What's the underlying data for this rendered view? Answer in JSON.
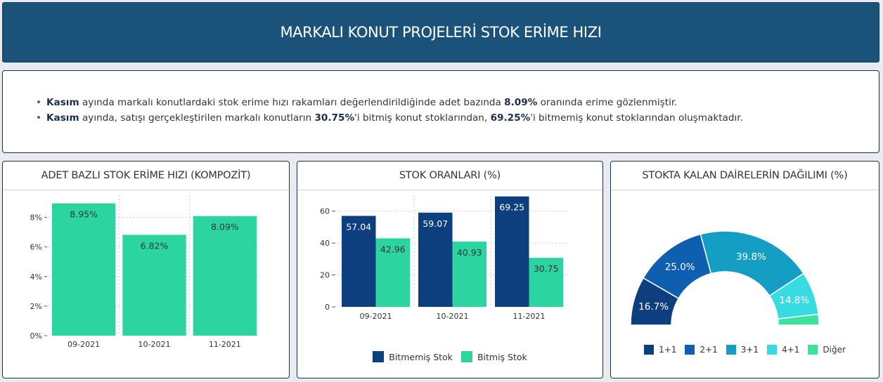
{
  "header": {
    "title": "MARKALI KONUT PROJELERİ STOK ERİME HIZI"
  },
  "summary": {
    "line1": {
      "month": "Kasım",
      "text_a": " ayında markalı konutlardaki stok erime hızı rakamları değerlendirildiğinde adet bazında ",
      "value": "8.09%",
      "text_b": " oranında erime gözlenmiştir."
    },
    "line2": {
      "month": "Kasım",
      "text_a": " ayında, satışı gerçekleştirilen markalı konutların ",
      "value1": "30.75%",
      "text_b": "'i bitmiş konut stoklarından, ",
      "value2": "69.25%",
      "text_c": "'i bitmemiş konut stoklarından oluşmaktadır."
    }
  },
  "panels": {
    "p1_title": "ADET BAZLI STOK ERİME HIZI (KOMPOZİT)",
    "p2_title": "STOK ORANLARI (%)",
    "p3_title": "STOKTA KALAN DAİRELERİN DAĞILIMI (%)"
  },
  "colors": {
    "green": "#2cd59f",
    "navy": "#0d3f7e",
    "pie": [
      "#0d3f7e",
      "#0f5fb0",
      "#149ec4",
      "#39dbe3",
      "#3de39d"
    ]
  },
  "chart_data": [
    {
      "type": "bar",
      "title": "ADET BAZLI STOK ERİME HIZI (KOMPOZİT)",
      "categories": [
        "09-2021",
        "10-2021",
        "11-2021"
      ],
      "values": [
        8.95,
        6.82,
        8.09
      ],
      "labels": [
        "8.95%",
        "6.82%",
        "8.09%"
      ],
      "ylim": [
        0,
        9.5
      ],
      "yticks": [
        0,
        2,
        4,
        6,
        8
      ],
      "ytick_labels": [
        "0%",
        "2%",
        "4%",
        "6%",
        "8%"
      ],
      "grid": true
    },
    {
      "type": "bar",
      "title": "STOK ORANLARI (%)",
      "categories": [
        "09-2021",
        "10-2021",
        "11-2021"
      ],
      "series": [
        {
          "name": "Bitmemiş Stok",
          "values": [
            57.04,
            59.07,
            69.25
          ]
        },
        {
          "name": "Bitmiş Stok",
          "values": [
            42.96,
            40.93,
            30.75
          ]
        }
      ],
      "ylim": [
        0,
        70
      ],
      "yticks": [
        0,
        20,
        40,
        60
      ],
      "legend": "bottom",
      "grid": true
    },
    {
      "type": "pie",
      "title": "STOKTA KALAN DAİRELERİN DAĞILIMI (%)",
      "slices": [
        {
          "name": "1+1",
          "value": 16.7,
          "label": "16.7%"
        },
        {
          "name": "2+1",
          "value": 25.0,
          "label": "25.0%"
        },
        {
          "name": "3+1",
          "value": 39.8,
          "label": "39.8%"
        },
        {
          "name": "4+1",
          "value": 14.8,
          "label": "14.8%"
        },
        {
          "name": "Diğer",
          "value": 3.7,
          "label": ""
        }
      ],
      "style": "semicircle-donut",
      "legend": "bottom"
    }
  ]
}
